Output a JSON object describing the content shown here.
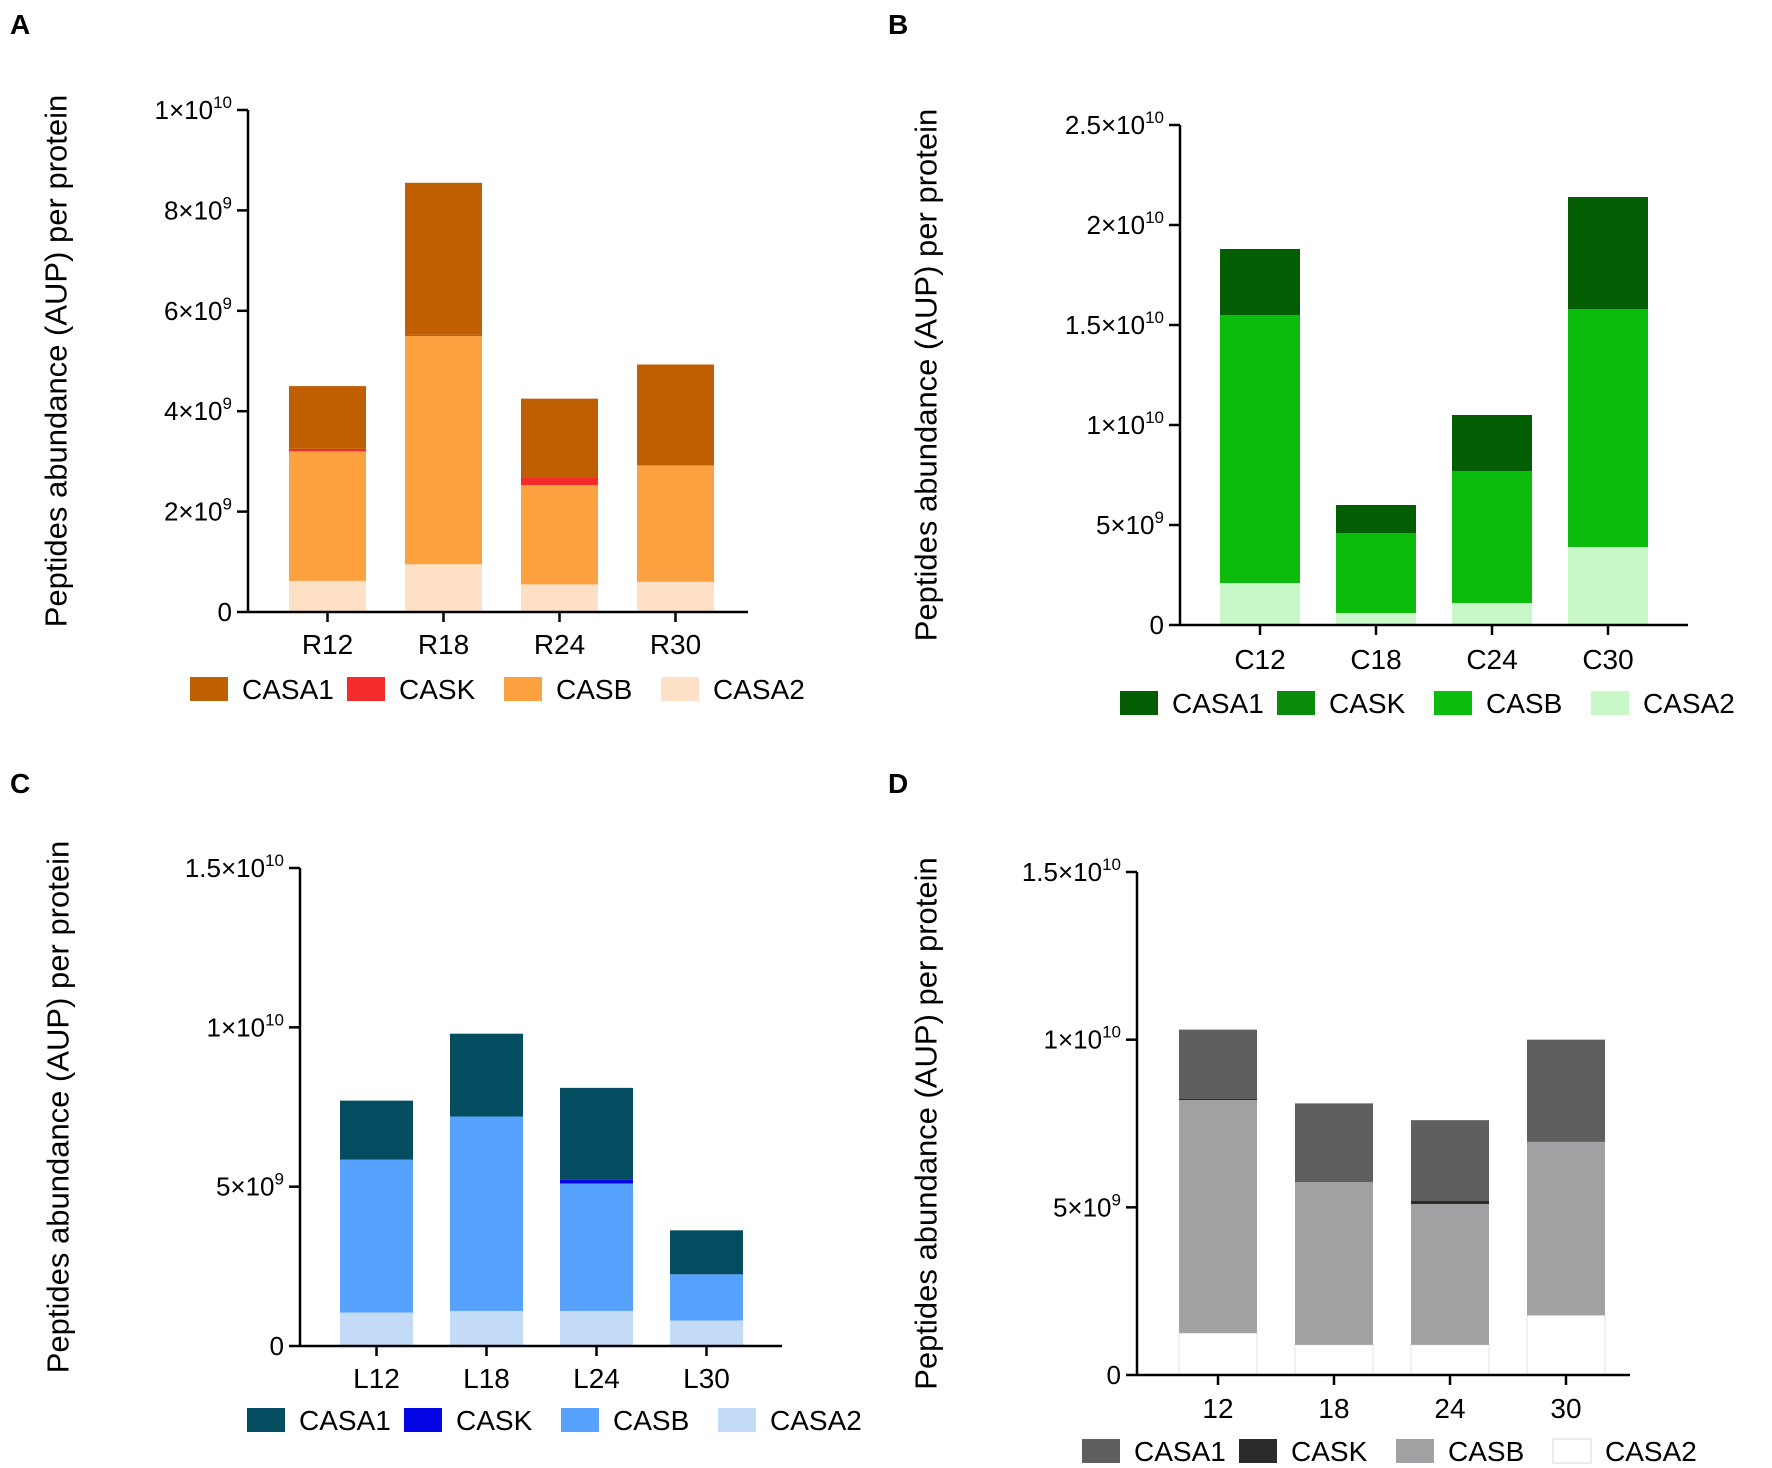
{
  "chart_data": [
    {
      "panel": "A",
      "type": "bar",
      "stacked": true,
      "ylabel": "Peptides abundance (AUP) per protein",
      "ylim": [
        0,
        10000000000
      ],
      "yticks": [
        {
          "value": 0,
          "mant": "0",
          "exp": ""
        },
        {
          "value": 2000000000,
          "mant": "2×10",
          "exp": "9"
        },
        {
          "value": 4000000000,
          "mant": "4×10",
          "exp": "9"
        },
        {
          "value": 6000000000,
          "mant": "6×10",
          "exp": "9"
        },
        {
          "value": 8000000000,
          "mant": "8×10",
          "exp": "9"
        },
        {
          "value": 10000000000,
          "mant": "1×10",
          "exp": "10"
        }
      ],
      "categories": [
        "R12",
        "R18",
        "R24",
        "R30"
      ],
      "series": [
        {
          "name": "CASA2",
          "color": "#fde0c5",
          "values": [
            620000000,
            950000000,
            550000000,
            600000000
          ]
        },
        {
          "name": "CASB",
          "color": "#fca040",
          "values": [
            2580000000,
            4550000000,
            1980000000,
            2320000000
          ]
        },
        {
          "name": "CASK",
          "color": "#f42b2b",
          "values": [
            50000000,
            20000000,
            150000000,
            0
          ]
        },
        {
          "name": "CASA1",
          "color": "#bf5f02",
          "values": [
            1250000000,
            3030000000,
            1570000000,
            2010000000
          ]
        }
      ],
      "legend": [
        {
          "name": "CASA1",
          "color": "#bf5f02"
        },
        {
          "name": "CASK",
          "color": "#f42b2b"
        },
        {
          "name": "CASB",
          "color": "#fca040"
        },
        {
          "name": "CASA2",
          "color": "#fde0c5"
        }
      ]
    },
    {
      "panel": "B",
      "type": "bar",
      "stacked": true,
      "ylabel": "Peptides abundance (AUP) per protein",
      "ylim": [
        0,
        25000000000
      ],
      "yticks": [
        {
          "value": 0,
          "mant": "0",
          "exp": ""
        },
        {
          "value": 5000000000,
          "mant": "5×10",
          "exp": "9"
        },
        {
          "value": 10000000000,
          "mant": "1×10",
          "exp": "10"
        },
        {
          "value": 15000000000,
          "mant": "1.5×10",
          "exp": "10"
        },
        {
          "value": 20000000000,
          "mant": "2×10",
          "exp": "10"
        },
        {
          "value": 25000000000,
          "mant": "2.5×10",
          "exp": "10"
        }
      ],
      "categories": [
        "C12",
        "C18",
        "C24",
        "C30"
      ],
      "series": [
        {
          "name": "CASA2",
          "color": "#c8f8c8",
          "values": [
            2100000000,
            600000000,
            1100000000,
            3900000000
          ]
        },
        {
          "name": "CASB",
          "color": "#0cbc0c",
          "values": [
            13400000000,
            4000000000,
            6600000000,
            11900000000
          ]
        },
        {
          "name": "CASK",
          "color": "#0a8a0a",
          "values": [
            0,
            0,
            0,
            0
          ]
        },
        {
          "name": "CASA1",
          "color": "#035e03",
          "values": [
            3300000000,
            1400000000,
            2800000000,
            5600000000
          ]
        }
      ],
      "legend": [
        {
          "name": "CASA1",
          "color": "#035e03"
        },
        {
          "name": "CASK",
          "color": "#0a8a0a"
        },
        {
          "name": "CASB",
          "color": "#0cbc0c"
        },
        {
          "name": "CASA2",
          "color": "#c8f8c8"
        }
      ]
    },
    {
      "panel": "C",
      "type": "bar",
      "stacked": true,
      "ylabel": "Peptides abundance (AUP) per protein",
      "ylim": [
        0,
        15000000000
      ],
      "yticks": [
        {
          "value": 0,
          "mant": "0",
          "exp": ""
        },
        {
          "value": 5000000000,
          "mant": "5×10",
          "exp": "9"
        },
        {
          "value": 10000000000,
          "mant": "1×10",
          "exp": "10"
        },
        {
          "value": 15000000000,
          "mant": "1.5×10",
          "exp": "10"
        }
      ],
      "categories": [
        "L12",
        "L18",
        "L24",
        "L30"
      ],
      "series": [
        {
          "name": "CASA2",
          "color": "#c3dbf6",
          "values": [
            1050000000,
            1100000000,
            1100000000,
            800000000
          ]
        },
        {
          "name": "CASB",
          "color": "#57a2fc",
          "values": [
            4800000000,
            6100000000,
            4000000000,
            1450000000
          ]
        },
        {
          "name": "CASK",
          "color": "#0505e6",
          "values": [
            0,
            0,
            120000000,
            0
          ]
        },
        {
          "name": "CASA1",
          "color": "#044d60",
          "values": [
            1850000000,
            2600000000,
            2880000000,
            1380000000
          ]
        }
      ],
      "legend": [
        {
          "name": "CASA1",
          "color": "#044d60"
        },
        {
          "name": "CASK",
          "color": "#0505e6"
        },
        {
          "name": "CASB",
          "color": "#57a2fc"
        },
        {
          "name": "CASA2",
          "color": "#c3dbf6"
        }
      ]
    },
    {
      "panel": "D",
      "type": "bar",
      "stacked": true,
      "ylabel": "Peptides abundance (AUP) per protein",
      "ylim": [
        0,
        15000000000
      ],
      "yticks": [
        {
          "value": 0,
          "mant": "0",
          "exp": ""
        },
        {
          "value": 5000000000,
          "mant": "5×10",
          "exp": "9"
        },
        {
          "value": 10000000000,
          "mant": "1×10",
          "exp": "10"
        },
        {
          "value": 15000000000,
          "mant": "1.5×10",
          "exp": "10"
        }
      ],
      "categories": [
        "12",
        "18",
        "24",
        "30"
      ],
      "series": [
        {
          "name": "CASA2",
          "color": "#ffffff",
          "values": [
            1250000000,
            900000000,
            900000000,
            1780000000
          ]
        },
        {
          "name": "CASB",
          "color": "#a1a1a3",
          "values": [
            6950000000,
            4850000000,
            4200000000,
            5170000000
          ]
        },
        {
          "name": "CASK",
          "color": "#2b2b2b",
          "values": [
            30000000,
            0,
            100000000,
            0
          ]
        },
        {
          "name": "CASA1",
          "color": "#5f5f5f",
          "values": [
            2070000000,
            2350000000,
            2400000000,
            3050000000
          ]
        }
      ],
      "legend": [
        {
          "name": "CASA1",
          "color": "#5f5f5f"
        },
        {
          "name": "CASK",
          "color": "#2b2b2b"
        },
        {
          "name": "CASB",
          "color": "#a1a1a3"
        },
        {
          "name": "CASA2",
          "color": "#ffffff"
        }
      ]
    }
  ]
}
